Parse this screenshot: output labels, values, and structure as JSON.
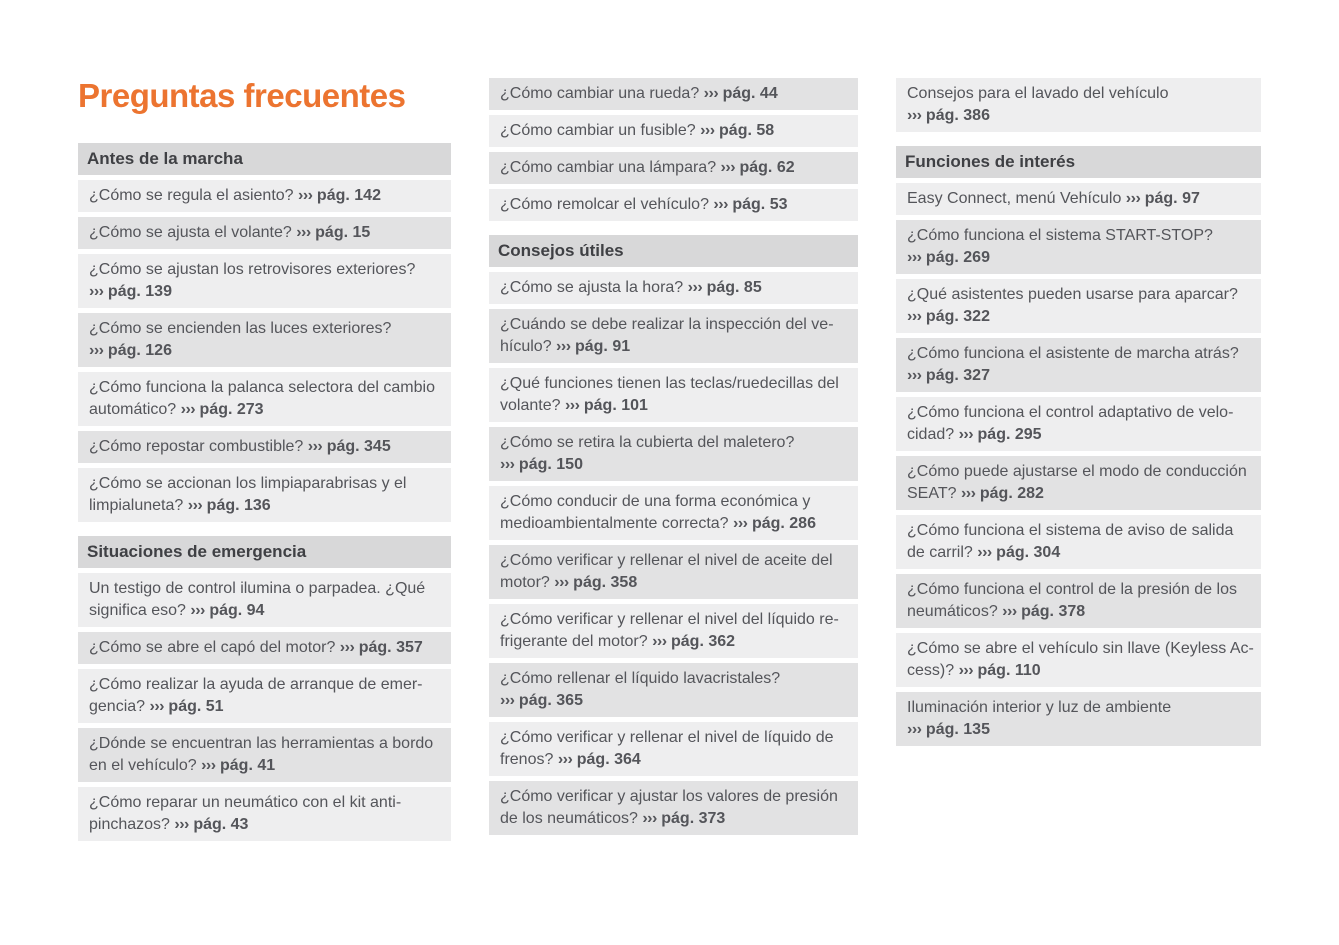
{
  "page": {
    "title": "Preguntas frecuentes"
  },
  "arrow": "›››",
  "colors": {
    "accent_orange": "#ec7430",
    "text_gray": "#54555a",
    "header_text_gray": "#3f4044",
    "section_header_bg": "#d8d8d9",
    "row_dark_bg": "#e2e2e3",
    "row_light_bg": "#eeeeef",
    "page_bg": "#ffffff"
  },
  "columns": [
    {
      "blocks": [
        {
          "type": "header",
          "label": "Antes de la marcha"
        },
        {
          "type": "item",
          "shade": "light",
          "question": "¿Cómo se regula el asiento?",
          "ref": "pág. 142"
        },
        {
          "type": "item",
          "shade": "dark",
          "question": "¿Cómo se ajusta el volante?",
          "ref": "pág. 15"
        },
        {
          "type": "item",
          "shade": "light",
          "question": "¿Cómo se ajustan los retrovisores exteriores?",
          "ref": "pág. 139",
          "ref_own_line": true
        },
        {
          "type": "item",
          "shade": "dark",
          "question": "¿Cómo se encienden las luces exteriores?",
          "ref": "pág. 126",
          "ref_own_line": true
        },
        {
          "type": "item",
          "shade": "light",
          "question": "¿Cómo funciona la palanca selectora del cam­bio automático?",
          "ref": "pág. 273"
        },
        {
          "type": "item",
          "shade": "dark",
          "question": "¿Cómo repostar combustible?",
          "ref": "pág. 345"
        },
        {
          "type": "item",
          "shade": "light",
          "question": "¿Cómo se accionan los limpiaparabrisas y el limpialuneta?",
          "ref": "pág. 136"
        },
        {
          "type": "header",
          "label": "Situaciones de emergencia"
        },
        {
          "type": "item",
          "shade": "light",
          "question": "Un testigo de control ilumina o parpadea. ¿Qué significa eso?",
          "ref": "pág. 94"
        },
        {
          "type": "item",
          "shade": "dark",
          "question": "¿Cómo se abre el capó del motor?",
          "ref": "pág. 357"
        },
        {
          "type": "item",
          "shade": "light",
          "question": "¿Cómo realizar la ayuda de arranque de emer­gencia?",
          "ref": "pág. 51"
        },
        {
          "type": "item",
          "shade": "dark",
          "question": "¿Dónde se encuentran las herramientas a bor­do en el vehículo?",
          "ref": "pág. 41"
        },
        {
          "type": "item",
          "shade": "light",
          "question": "¿Cómo reparar un neumático con el kit anti­pinchazos?",
          "ref": "pág. 43"
        }
      ]
    },
    {
      "blocks": [
        {
          "type": "item",
          "shade": "dark",
          "question": "¿Cómo cambiar una rueda?",
          "ref": "pág. 44"
        },
        {
          "type": "item",
          "shade": "light",
          "question": "¿Cómo cambiar un fusible?",
          "ref": "pág. 58"
        },
        {
          "type": "item",
          "shade": "dark",
          "question": "¿Cómo cambiar una lámpara?",
          "ref": "pág. 62"
        },
        {
          "type": "item",
          "shade": "light",
          "question": "¿Cómo remolcar el vehículo?",
          "ref": "pág. 53"
        },
        {
          "type": "header",
          "label": "Consejos útiles"
        },
        {
          "type": "item",
          "shade": "light",
          "question": "¿Cómo se ajusta la hora?",
          "ref": "pág. 85"
        },
        {
          "type": "item",
          "shade": "dark",
          "question": "¿Cuándo se debe realizar la inspección del ve­hículo?",
          "ref": "pág. 91"
        },
        {
          "type": "item",
          "shade": "light",
          "question": "¿Qué funciones tienen las teclas/ruedecillas del volante?",
          "ref": "pág. 101"
        },
        {
          "type": "item",
          "shade": "dark",
          "question": "¿Cómo se retira la cubierta del maletero?",
          "ref": "pág. 150",
          "ref_own_line": true
        },
        {
          "type": "item",
          "shade": "light",
          "question": "¿Cómo conducir de una forma económica y medioambientalmente correcta?",
          "ref": "pág. 286"
        },
        {
          "type": "item",
          "shade": "dark",
          "question": "¿Cómo verificar y rellenar el nivel de aceite del motor?",
          "ref": "pág. 358"
        },
        {
          "type": "item",
          "shade": "light",
          "question": "¿Cómo verificar y rellenar el nivel del líquido re­frigerante del motor?",
          "ref": "pág. 362"
        },
        {
          "type": "item",
          "shade": "dark",
          "question": "¿Cómo rellenar el líquido lavacristales?",
          "ref": "pág. 365",
          "ref_own_line": true
        },
        {
          "type": "item",
          "shade": "light",
          "question": "¿Cómo verificar y rellenar el nivel de líquido de frenos?",
          "ref": "pág. 364"
        },
        {
          "type": "item",
          "shade": "dark",
          "question": "¿Cómo verificar y ajustar los valores de presión de los neumáticos?",
          "ref": "pág. 373"
        }
      ]
    },
    {
      "blocks": [
        {
          "type": "item",
          "shade": "light",
          "question": "Consejos para el lavado del vehículo",
          "ref": "pág. 386",
          "ref_own_line": true
        },
        {
          "type": "header",
          "label": "Funciones de interés"
        },
        {
          "type": "item",
          "shade": "light",
          "question": "Easy Connect, menú Vehículo",
          "ref": "pág. 97"
        },
        {
          "type": "item",
          "shade": "dark",
          "question": "¿Cómo funciona el sistema START-STOP?",
          "ref": "pág. 269",
          "ref_own_line": true
        },
        {
          "type": "item",
          "shade": "light",
          "question": "¿Qué asistentes pueden usarse para aparcar?",
          "ref": "pág. 322",
          "ref_own_line": true
        },
        {
          "type": "item",
          "shade": "dark",
          "question": "¿Cómo funciona el asistente de marcha atrás?",
          "ref": "pág. 327",
          "ref_own_line": true
        },
        {
          "type": "item",
          "shade": "light",
          "question": "¿Cómo funciona el control adaptativo de velo­cidad?",
          "ref": "pág. 295"
        },
        {
          "type": "item",
          "shade": "dark",
          "question": "¿Cómo puede ajustarse el modo de conducción SEAT?",
          "ref": "pág. 282"
        },
        {
          "type": "item",
          "shade": "light",
          "question": "¿Cómo funciona el sistema de aviso de salida de carril?",
          "ref": "pág. 304"
        },
        {
          "type": "item",
          "shade": "dark",
          "question": "¿Cómo funciona el control de la presión de los neumáticos?",
          "ref": "pág. 378"
        },
        {
          "type": "item",
          "shade": "light",
          "question": "¿Cómo se abre el vehículo sin llave (Keyless Ac­cess)?",
          "ref": "pág. 110"
        },
        {
          "type": "item",
          "shade": "dark",
          "question": "Iluminación interior y luz de ambiente",
          "ref": "pág. 135",
          "ref_own_line": true
        }
      ]
    }
  ]
}
